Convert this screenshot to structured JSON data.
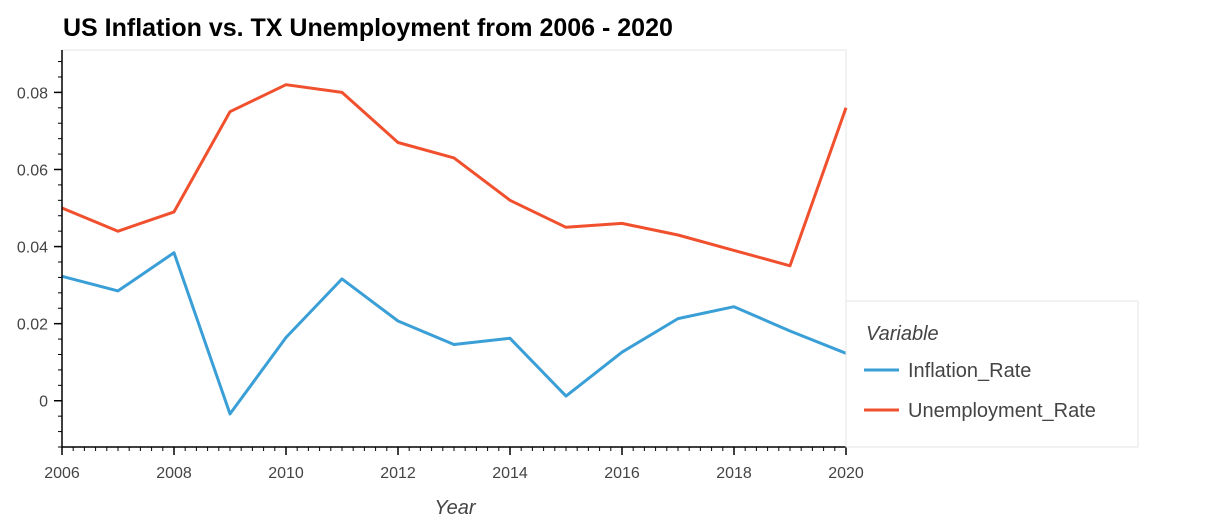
{
  "chart_data": {
    "type": "line",
    "title": "US Inflation vs. TX Unemployment from 2006 - 2020",
    "xlabel": "Year",
    "ylabel": "",
    "x": [
      2006,
      2007,
      2008,
      2009,
      2010,
      2011,
      2012,
      2013,
      2014,
      2015,
      2016,
      2017,
      2018,
      2019,
      2020
    ],
    "xlim": [
      2006,
      2020
    ],
    "ylim": [
      -0.012,
      0.091
    ],
    "x_ticks": [
      2006,
      2008,
      2010,
      2012,
      2014,
      2016,
      2018,
      2020
    ],
    "y_ticks": [
      0,
      0.02,
      0.04,
      0.06,
      0.08
    ],
    "y_tick_labels": [
      "0",
      "0.02",
      "0.04",
      "0.06",
      "0.08"
    ],
    "grid": false,
    "legend_position": "right",
    "legend_title": "Variable",
    "series": [
      {
        "name": "Inflation_Rate",
        "color": "#3a9fd6",
        "values": [
          0.0323,
          0.0285,
          0.0384,
          -0.0034,
          0.0164,
          0.0316,
          0.0207,
          0.0146,
          0.0162,
          0.0012,
          0.0126,
          0.0213,
          0.0244,
          0.0181,
          0.0123
        ]
      },
      {
        "name": "Unemployment_Rate",
        "color": "#f0502d",
        "values": [
          0.05,
          0.044,
          0.049,
          0.075,
          0.082,
          0.08,
          0.067,
          0.063,
          0.052,
          0.045,
          0.046,
          0.043,
          0.039,
          0.035,
          0.076
        ]
      }
    ]
  }
}
